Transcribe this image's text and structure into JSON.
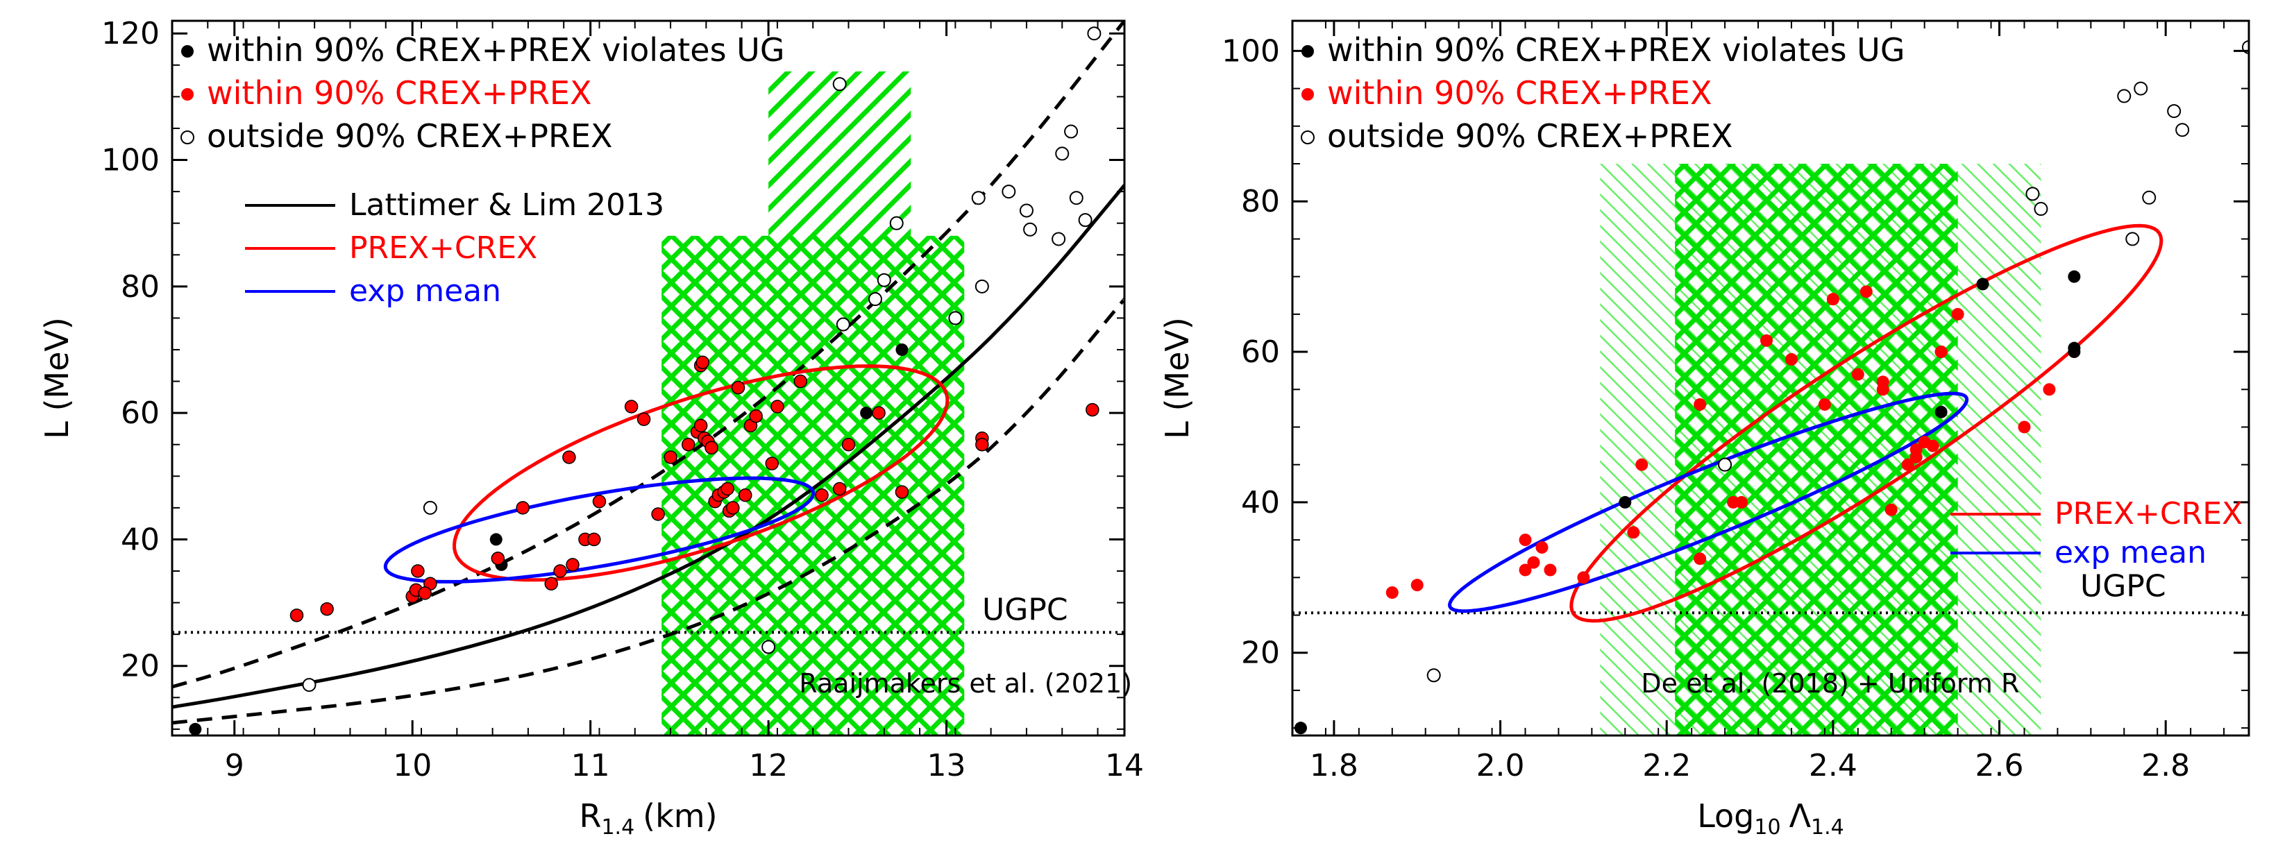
{
  "chart_data": [
    {
      "type": "scatter",
      "panel": "left",
      "xlabel": "R",
      "xlabel_sub": "1.4",
      "xlabel_unit": "(km)",
      "ylabel": "L  (MeV)",
      "xlim": [
        8.65,
        14.0
      ],
      "ylim": [
        9,
        122
      ],
      "xticks": [
        9,
        10,
        11,
        12,
        13,
        14
      ],
      "yticks": [
        20,
        40,
        60,
        80,
        100,
        120
      ],
      "legend_points": [
        {
          "label": "within 90% CREX+PREX violates UG",
          "color": "#000000",
          "style": "filled"
        },
        {
          "label": "within 90% CREX+PREX",
          "color": "#ff0000",
          "style": "filled"
        },
        {
          "label": "outside 90% CREX+PREX",
          "color": "#000000",
          "style": "open"
        }
      ],
      "legend_lines": [
        {
          "label": "Lattimer & Lim 2013",
          "color": "#000000"
        },
        {
          "label": "PREX+CREX",
          "color": "#ff0000"
        },
        {
          "label": "exp mean",
          "color": "#0000ff"
        }
      ],
      "ugpc": {
        "value": 25.3,
        "label": "UGPC"
      },
      "bands": [
        {
          "x0": 11.4,
          "x1": 13.1,
          "y0": 9,
          "y1": 88,
          "hatch": "/",
          "label": "Raaijmakers et al. (2021)"
        },
        {
          "x0": 11.4,
          "x1": 13.1,
          "y0": 9,
          "y1": 88,
          "hatch": "\\"
        },
        {
          "x0": 12.0,
          "x1": 12.8,
          "y0": 9,
          "y1": 114,
          "hatch": "/"
        }
      ],
      "band_label": "Raaijmakers et al. (2021)",
      "lattimer_curves": {
        "central": [
          [
            8.65,
            13.5
          ],
          [
            9.0,
            15.1
          ],
          [
            10.0,
            20.4
          ],
          [
            11.0,
            28.5
          ],
          [
            12.0,
            42.0
          ],
          [
            13.0,
            65.0
          ],
          [
            13.5,
            79.0
          ],
          [
            14.0,
            96.0
          ]
        ],
        "upper": [
          [
            8.65,
            16.7
          ],
          [
            9.0,
            19.5
          ],
          [
            10.0,
            29.5
          ],
          [
            11.0,
            43.0
          ],
          [
            12.0,
            62.0
          ],
          [
            13.0,
            88.0
          ],
          [
            13.5,
            104.0
          ],
          [
            14.0,
            122.0
          ]
        ],
        "lower": [
          [
            8.65,
            11.0
          ],
          [
            9.0,
            12.0
          ],
          [
            10.0,
            15.0
          ],
          [
            11.0,
            20.5
          ],
          [
            12.0,
            30.5
          ],
          [
            13.0,
            48.0
          ],
          [
            13.5,
            61.0
          ],
          [
            14.0,
            78.0
          ]
        ]
      },
      "ellipses": [
        {
          "name": "PREX+CREX",
          "color": "#ff0000",
          "cx": 11.62,
          "cy": 50.5,
          "semi_u": 1.45,
          "semi_v": 0.06,
          "angle_deg": 18
        },
        {
          "name": "exp mean",
          "color": "#0000ff",
          "cx": 11.05,
          "cy": 41.5,
          "semi_u": 1.22,
          "semi_v": 0.04,
          "angle_deg": 10
        }
      ],
      "series": [
        {
          "name": "within 90% CREX+PREX violates UG",
          "style": "filled",
          "color": "#000000",
          "points": [
            [
              8.78,
              10
            ],
            [
              10.47,
              40
            ],
            [
              10.5,
              36
            ],
            [
              12.02,
              52
            ],
            [
              12.55,
              60
            ],
            [
              12.75,
              70
            ]
          ]
        },
        {
          "name": "within 90% CREX+PREX",
          "style": "filled",
          "color": "#ff0000",
          "points": [
            [
              9.35,
              28
            ],
            [
              9.52,
              29
            ],
            [
              10.0,
              31
            ],
            [
              10.02,
              32
            ],
            [
              10.03,
              35
            ],
            [
              10.1,
              33
            ],
            [
              10.07,
              31.5
            ],
            [
              10.48,
              37
            ],
            [
              10.62,
              45
            ],
            [
              10.78,
              33
            ],
            [
              10.83,
              35
            ],
            [
              10.9,
              36
            ],
            [
              10.88,
              53
            ],
            [
              10.97,
              40
            ],
            [
              11.02,
              40
            ],
            [
              11.05,
              46
            ],
            [
              11.23,
              61
            ],
            [
              11.3,
              59
            ],
            [
              11.38,
              44
            ],
            [
              11.45,
              53
            ],
            [
              11.55,
              55
            ],
            [
              11.6,
              57
            ],
            [
              11.62,
              58
            ],
            [
              11.62,
              67.5
            ],
            [
              11.63,
              68
            ],
            [
              11.64,
              56
            ],
            [
              11.66,
              55.5
            ],
            [
              11.68,
              54.5
            ],
            [
              11.7,
              46
            ],
            [
              11.72,
              47
            ],
            [
              11.75,
              47.5
            ],
            [
              11.77,
              48
            ],
            [
              11.78,
              44.5
            ],
            [
              11.8,
              45
            ],
            [
              11.83,
              64
            ],
            [
              11.87,
              47
            ],
            [
              11.9,
              58
            ],
            [
              11.93,
              59.5
            ],
            [
              12.02,
              52
            ],
            [
              12.05,
              61
            ],
            [
              12.18,
              65
            ],
            [
              12.3,
              47
            ],
            [
              12.4,
              48
            ],
            [
              12.45,
              55
            ],
            [
              12.62,
              60
            ],
            [
              12.75,
              47.5
            ],
            [
              13.2,
              56
            ],
            [
              13.2,
              55
            ],
            [
              13.82,
              60.5
            ]
          ]
        },
        {
          "name": "outside 90% CREX+PREX",
          "style": "open",
          "color": "#000000",
          "points": [
            [
              9.42,
              17
            ],
            [
              10.1,
              45
            ],
            [
              12.0,
              23
            ],
            [
              12.4,
              112
            ],
            [
              12.42,
              74
            ],
            [
              12.6,
              78
            ],
            [
              12.65,
              81
            ],
            [
              12.72,
              90
            ],
            [
              13.05,
              75
            ],
            [
              13.18,
              94
            ],
            [
              13.2,
              80
            ],
            [
              13.35,
              95
            ],
            [
              13.45,
              92
            ],
            [
              13.47,
              89
            ],
            [
              13.63,
              87.5
            ],
            [
              13.65,
              101
            ],
            [
              13.7,
              104.5
            ],
            [
              13.73,
              94
            ],
            [
              13.78,
              90.5
            ],
            [
              13.83,
              120
            ]
          ]
        }
      ]
    },
    {
      "type": "scatter",
      "panel": "right",
      "xlabel": "Log",
      "xlabel_sub": "10",
      "xlabel_unit": "Λ",
      "xlabel_unit_sub": "1.4",
      "ylabel": "L  (MeV)",
      "xlim": [
        1.75,
        2.9
      ],
      "ylim": [
        9,
        104
      ],
      "xticks": [
        1.8,
        2.0,
        2.2,
        2.4,
        2.6,
        2.8
      ],
      "xticklabels": [
        "1.8",
        "2.0",
        "2.2",
        "2.4",
        "2.6",
        "2.8"
      ],
      "yticks": [
        20,
        40,
        60,
        80,
        100
      ],
      "legend_points": [
        {
          "label": "within 90% CREX+PREX violates UG",
          "color": "#000000",
          "style": "filled"
        },
        {
          "label": "within 90% CREX+PREX",
          "color": "#ff0000",
          "style": "filled"
        },
        {
          "label": "outside 90% CREX+PREX",
          "color": "#000000",
          "style": "open"
        }
      ],
      "legend_lines": [
        {
          "label": "PREX+CREX",
          "color": "#ff0000"
        },
        {
          "label": "exp mean",
          "color": "#0000ff"
        }
      ],
      "ugpc": {
        "value": 25.3,
        "label": "UGPC"
      },
      "bands": [
        {
          "x0": 2.12,
          "x1": 2.65,
          "y0": 9,
          "y1": 85,
          "hatch": "\\",
          "light": true
        },
        {
          "x0": 2.21,
          "x1": 2.55,
          "y0": 9,
          "y1": 85,
          "hatch": "/",
          "label": "De et al. (2018) + Uniform R"
        },
        {
          "x0": 2.21,
          "x1": 2.55,
          "y0": 9,
          "y1": 85,
          "hatch": "\\"
        }
      ],
      "band_label": "De et al. (2018) + Uniform R",
      "ellipses": [
        {
          "name": "PREX+CREX",
          "color": "#ff0000",
          "cx": 2.44,
          "cy": 50.5,
          "semi_u": 0.42,
          "semi_v": 0.045,
          "angle_deg": 33
        },
        {
          "name": "exp mean",
          "color": "#0000ff",
          "cx": 2.25,
          "cy": 40,
          "semi_u": 0.335,
          "semi_v": 0.03,
          "angle_deg": 22
        }
      ],
      "series": [
        {
          "name": "within 90% CREX+PREX violates UG",
          "style": "filled",
          "color": "#000000",
          "points": [
            [
              1.76,
              10
            ],
            [
              2.15,
              40
            ],
            [
              2.53,
              52
            ],
            [
              2.58,
              69
            ],
            [
              2.69,
              70
            ],
            [
              2.69,
              60.5
            ],
            [
              2.69,
              60
            ],
            [
              2.53,
              60
            ]
          ]
        },
        {
          "name": "within 90% CREX+PREX",
          "style": "filled",
          "color": "#ff0000",
          "points": [
            [
              1.87,
              28
            ],
            [
              1.9,
              29
            ],
            [
              2.03,
              31
            ],
            [
              2.03,
              35
            ],
            [
              2.04,
              32
            ],
            [
              2.05,
              34
            ],
            [
              2.06,
              31
            ],
            [
              2.1,
              30
            ],
            [
              2.16,
              36
            ],
            [
              2.17,
              45
            ],
            [
              2.24,
              32.5
            ],
            [
              2.24,
              53
            ],
            [
              2.28,
              40
            ],
            [
              2.29,
              40
            ],
            [
              2.32,
              61.5
            ],
            [
              2.35,
              59
            ],
            [
              2.39,
              53
            ],
            [
              2.4,
              67
            ],
            [
              2.43,
              57
            ],
            [
              2.44,
              68
            ],
            [
              2.46,
              55
            ],
            [
              2.46,
              56
            ],
            [
              2.47,
              39
            ],
            [
              2.49,
              45
            ],
            [
              2.5,
              46
            ],
            [
              2.5,
              47
            ],
            [
              2.51,
              48
            ],
            [
              2.52,
              47.5
            ],
            [
              2.53,
              60
            ],
            [
              2.55,
              65
            ],
            [
              2.63,
              50
            ],
            [
              2.66,
              55
            ]
          ]
        },
        {
          "name": "outside 90% CREX+PREX",
          "style": "open",
          "color": "#000000",
          "points": [
            [
              1.92,
              17
            ],
            [
              2.27,
              45
            ],
            [
              2.64,
              81
            ],
            [
              2.65,
              79
            ],
            [
              2.75,
              94
            ],
            [
              2.76,
              75
            ],
            [
              2.77,
              95
            ],
            [
              2.78,
              80.5
            ],
            [
              2.81,
              92
            ],
            [
              2.82,
              89.5
            ],
            [
              2.9,
              100.5
            ]
          ]
        }
      ]
    }
  ]
}
